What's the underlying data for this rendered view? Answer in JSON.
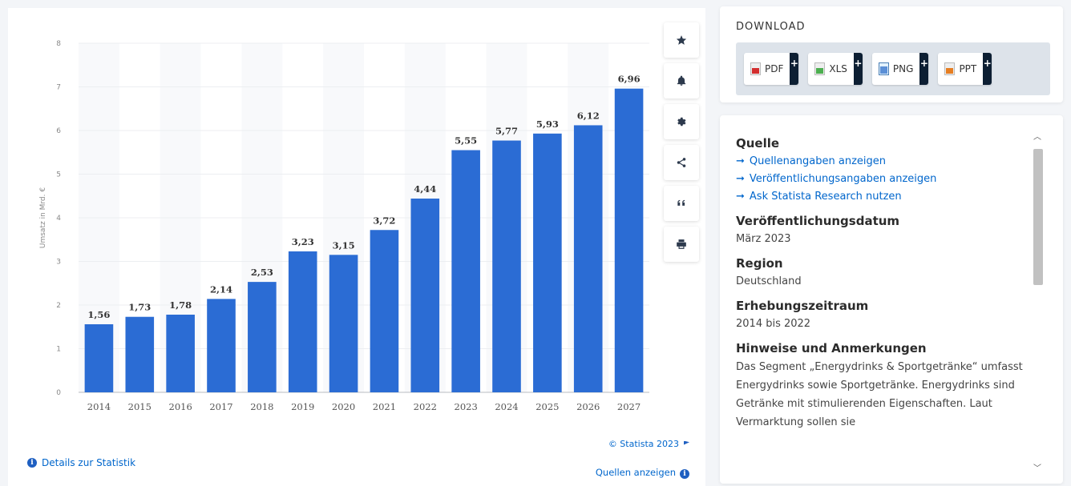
{
  "chart_data": {
    "type": "bar",
    "categories": [
      "2014",
      "2015",
      "2016",
      "2017",
      "2018",
      "2019",
      "2020",
      "2021",
      "2022",
      "2023",
      "2024",
      "2025",
      "2026",
      "2027"
    ],
    "values": [
      1.56,
      1.73,
      1.78,
      2.14,
      2.53,
      3.23,
      3.15,
      3.72,
      4.44,
      5.55,
      5.77,
      5.93,
      6.12,
      6.96
    ],
    "value_labels": [
      "1,56",
      "1,73",
      "1,78",
      "2,14",
      "2,53",
      "3,23",
      "3,15",
      "3,72",
      "4,44",
      "5,55",
      "5,77",
      "5,93",
      "6,12",
      "6,96"
    ],
    "ylabel": "Umsatz in Mrd. €",
    "ylim": [
      0,
      8
    ],
    "yticks": [
      "0",
      "1",
      "2",
      "3",
      "4",
      "5",
      "6",
      "7",
      "8"
    ],
    "grid": true,
    "bar_color": "#2b6cd4"
  },
  "chart_footer": {
    "details_link": "Details zur Statistik",
    "copyright": "© Statista 2023",
    "sources_link": "Quellen anzeigen"
  },
  "toolbar": {
    "icons": [
      "star-icon",
      "bell-icon",
      "gear-icon",
      "share-icon",
      "quote-icon",
      "print-icon"
    ]
  },
  "download": {
    "title": "DOWNLOAD",
    "buttons": [
      "PDF",
      "XLS",
      "PNG",
      "PPT"
    ],
    "plus": "+"
  },
  "info": {
    "source_heading": "Quelle",
    "source_links": [
      "Quellenangaben anzeigen",
      "Veröffentlichungsangaben anzeigen",
      "Ask Statista Research nutzen"
    ],
    "arrow": "➞",
    "pubdate_heading": "Veröffentlichungsdatum",
    "pubdate_value": "März 2023",
    "region_heading": "Region",
    "region_value": "Deutschland",
    "period_heading": "Erhebungszeitraum",
    "period_value": "2014 bis 2022",
    "notes_heading": "Hinweise und Anmerkungen",
    "notes_text": "Das Segment „Energydrinks & Sportgetränke“ umfasst Energydrinks sowie Sportgetränke. Energydrinks sind Getränke mit stimulierenden Eigenschaften. Laut Vermarktung sollen sie"
  }
}
